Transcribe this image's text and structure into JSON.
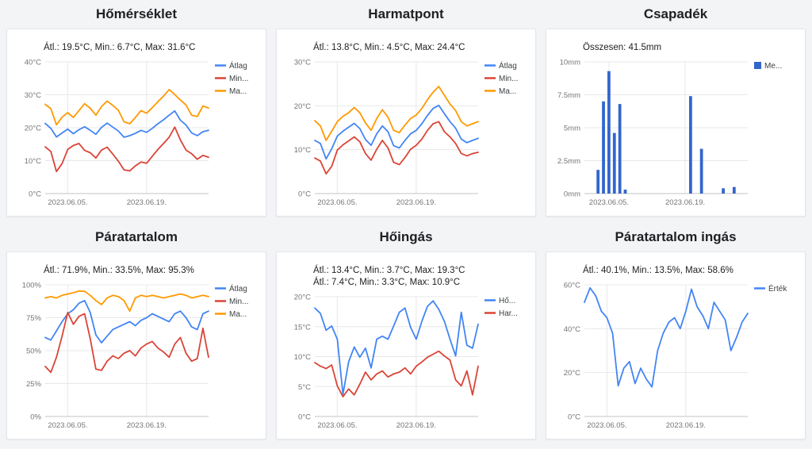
{
  "page": {
    "background": "#f3f4f6",
    "title_color": "#202124"
  },
  "colors": {
    "blue": "#4285f4",
    "red": "#db4437",
    "orange": "#ff9900",
    "bar_blue": "#3366cc"
  },
  "chart_data": [
    {
      "id": "temperature",
      "type": "line",
      "title": "Hőmérséklet",
      "subtitle_lines": [
        "Átl.: 19.5°C, Min.: 6.7°C, Max: 31.6°C"
      ],
      "ylim": [
        0,
        40
      ],
      "y_ticks": [
        {
          "value": 0,
          "label": "0°C"
        },
        {
          "value": 10,
          "label": "10°C"
        },
        {
          "value": 20,
          "label": "20°C"
        },
        {
          "value": 30,
          "label": "30°C"
        },
        {
          "value": 40,
          "label": "40°C"
        }
      ],
      "x_ticks": [
        {
          "index": 4,
          "label": "2023.06.05."
        },
        {
          "index": 18,
          "label": "2023.06.19."
        }
      ],
      "series": [
        {
          "name": "Átlag",
          "color": "#4285f4",
          "values": [
            21.3,
            19.8,
            17.2,
            18.4,
            19.6,
            18.2,
            19.4,
            20.3,
            19.2,
            18.0,
            20.1,
            21.4,
            20.2,
            19.0,
            17.1,
            17.6,
            18.3,
            19.2,
            18.6,
            19.8,
            21.2,
            22.4,
            23.8,
            25.1,
            22.3,
            20.8,
            18.4,
            17.6,
            18.8,
            19.2
          ]
        },
        {
          "name": "Min...",
          "color": "#db4437",
          "values": [
            14.2,
            12.8,
            6.7,
            9.1,
            13.4,
            14.6,
            15.2,
            13.1,
            12.4,
            10.8,
            13.2,
            14.1,
            12.0,
            9.8,
            7.2,
            6.9,
            8.4,
            9.6,
            9.2,
            11.3,
            13.4,
            15.2,
            17.1,
            20.2,
            16.3,
            13.2,
            12.1,
            10.4,
            11.6,
            11.0
          ]
        },
        {
          "name": "Ma...",
          "color": "#ff9900",
          "values": [
            27.1,
            25.8,
            20.9,
            23.2,
            24.6,
            23.1,
            25.2,
            27.3,
            25.9,
            23.8,
            26.4,
            28.1,
            26.8,
            25.3,
            21.8,
            21.2,
            23.1,
            25.2,
            24.4,
            26.1,
            27.9,
            29.6,
            31.6,
            30.1,
            28.4,
            26.9,
            23.8,
            23.4,
            26.6,
            26.0
          ]
        }
      ]
    },
    {
      "id": "dewpoint",
      "type": "line",
      "title": "Harmatpont",
      "subtitle_lines": [
        "Átl.: 13.8°C, Min.: 4.5°C, Max: 24.4°C"
      ],
      "ylim": [
        0,
        30
      ],
      "y_ticks": [
        {
          "value": 0,
          "label": "0°C"
        },
        {
          "value": 10,
          "label": "10°C"
        },
        {
          "value": 20,
          "label": "20°C"
        },
        {
          "value": 30,
          "label": "30°C"
        }
      ],
      "x_ticks": [
        {
          "index": 4,
          "label": "2023.06.05."
        },
        {
          "index": 18,
          "label": "2023.06.19."
        }
      ],
      "series": [
        {
          "name": "Átlag",
          "color": "#4285f4",
          "values": [
            12.1,
            11.4,
            7.9,
            10.2,
            13.1,
            14.2,
            15.1,
            16.0,
            14.8,
            12.3,
            11.0,
            13.6,
            15.4,
            14.1,
            10.9,
            10.4,
            12.1,
            13.6,
            14.4,
            15.9,
            17.8,
            19.4,
            20.1,
            18.2,
            16.4,
            14.9,
            12.4,
            11.6,
            12.1,
            12.6
          ]
        },
        {
          "name": "Min...",
          "color": "#db4437",
          "values": [
            8.1,
            7.4,
            4.5,
            6.2,
            9.9,
            11.1,
            12.0,
            12.9,
            11.8,
            9.1,
            7.6,
            10.1,
            12.1,
            10.4,
            7.1,
            6.6,
            8.2,
            10.1,
            11.0,
            12.4,
            14.4,
            15.9,
            16.4,
            14.1,
            12.9,
            11.4,
            9.1,
            8.6,
            9.1,
            9.4
          ]
        },
        {
          "name": "Ma...",
          "color": "#ff9900",
          "values": [
            16.6,
            15.4,
            12.1,
            14.2,
            16.4,
            17.6,
            18.4,
            19.6,
            18.4,
            16.1,
            14.4,
            17.1,
            19.1,
            17.4,
            14.4,
            13.9,
            15.6,
            17.1,
            17.9,
            19.4,
            21.4,
            23.1,
            24.4,
            22.4,
            20.4,
            18.9,
            16.4,
            15.4,
            15.9,
            16.4
          ]
        }
      ]
    },
    {
      "id": "precipitation",
      "type": "bar",
      "title": "Csapadék",
      "subtitle_lines": [
        "Összesen: 41.5mm"
      ],
      "ylim": [
        0,
        10
      ],
      "y_ticks": [
        {
          "value": 0,
          "label": "0mm"
        },
        {
          "value": 2.5,
          "label": "2.5mm"
        },
        {
          "value": 5,
          "label": "5mm"
        },
        {
          "value": 7.5,
          "label": "7.5mm"
        },
        {
          "value": 10,
          "label": "10mm"
        }
      ],
      "x_ticks": [
        {
          "index": 4,
          "label": "2023.06.05."
        },
        {
          "index": 18,
          "label": "2023.06.19."
        }
      ],
      "series": [
        {
          "name": "Me...",
          "color": "#3366cc",
          "values": [
            0,
            0,
            1.8,
            7.0,
            9.3,
            4.6,
            6.8,
            0.3,
            0,
            0,
            0,
            0,
            0,
            0,
            0,
            0,
            0,
            0,
            0,
            7.4,
            0,
            3.4,
            0,
            0,
            0,
            0.4,
            0,
            0.5,
            0,
            0
          ]
        }
      ]
    },
    {
      "id": "humidity",
      "type": "line",
      "title": "Páratartalom",
      "subtitle_lines": [
        "Átl.: 71.9%, Min.: 33.5%, Max: 95.3%"
      ],
      "ylim": [
        0,
        100
      ],
      "y_ticks": [
        {
          "value": 0,
          "label": "0%"
        },
        {
          "value": 25,
          "label": "25%"
        },
        {
          "value": 50,
          "label": "50%"
        },
        {
          "value": 75,
          "label": "75%"
        },
        {
          "value": 100,
          "label": "100%"
        }
      ],
      "x_ticks": [
        {
          "index": 4,
          "label": "2023.06.05."
        },
        {
          "index": 18,
          "label": "2023.06.19."
        }
      ],
      "series": [
        {
          "name": "Átlag",
          "color": "#4285f4",
          "values": [
            60,
            58,
            65,
            72,
            78,
            81,
            86,
            88,
            79,
            62,
            56,
            61,
            66,
            68,
            70,
            72,
            69,
            73,
            75,
            78,
            76,
            74,
            72,
            78,
            80,
            75,
            68,
            66,
            78,
            80
          ]
        },
        {
          "name": "Min...",
          "color": "#db4437",
          "values": [
            38,
            33.5,
            45,
            61,
            79,
            70,
            76,
            78,
            59,
            36,
            35,
            42,
            46,
            44,
            48,
            50,
            46,
            52,
            55,
            57,
            52,
            49,
            45,
            55,
            60,
            48,
            42,
            44,
            67,
            45
          ]
        },
        {
          "name": "Ma...",
          "color": "#ff9900",
          "values": [
            90,
            91,
            90,
            92,
            93,
            94,
            95.3,
            95,
            92,
            88,
            85,
            90,
            92,
            91,
            88,
            80,
            90,
            92,
            91,
            92,
            91,
            90,
            91,
            92,
            93,
            92,
            90,
            91,
            92,
            91
          ]
        }
      ]
    },
    {
      "id": "temperature-range",
      "type": "line",
      "title": "Hőingás",
      "subtitle_lines": [
        "Átl.: 13.4°C, Min.: 3.7°C, Max: 19.3°C",
        "Átl.: 7.4°C, Min.: 3.3°C, Max: 10.9°C"
      ],
      "ylim": [
        0,
        20
      ],
      "y_ticks": [
        {
          "value": 0,
          "label": "0°C"
        },
        {
          "value": 5,
          "label": "5°C"
        },
        {
          "value": 10,
          "label": "10°C"
        },
        {
          "value": 15,
          "label": "15°C"
        },
        {
          "value": 20,
          "label": "20°C"
        }
      ],
      "x_ticks": [
        {
          "index": 4,
          "label": "2023.06.05."
        },
        {
          "index": 18,
          "label": "2023.06.19."
        }
      ],
      "series": [
        {
          "name": "Hő...",
          "color": "#4285f4",
          "values": [
            18.1,
            17.2,
            14.4,
            15.1,
            12.9,
            3.7,
            9.1,
            11.6,
            9.9,
            11.4,
            8.1,
            12.9,
            13.4,
            12.9,
            15.1,
            17.4,
            18.1,
            14.9,
            12.9,
            15.9,
            18.4,
            19.3,
            17.9,
            15.9,
            12.9,
            10.1,
            17.4,
            11.9,
            11.4,
            15.4
          ]
        },
        {
          "name": "Har...",
          "color": "#db4437",
          "values": [
            9.0,
            8.4,
            8.0,
            8.6,
            5.1,
            3.3,
            4.6,
            3.6,
            5.4,
            7.4,
            6.1,
            7.1,
            7.6,
            6.6,
            7.1,
            7.4,
            8.1,
            7.1,
            8.4,
            9.1,
            9.9,
            10.4,
            10.9,
            10.1,
            9.4,
            6.1,
            5.1,
            7.6,
            3.6,
            8.4
          ]
        }
      ]
    },
    {
      "id": "humidity-range",
      "type": "line",
      "title": "Páratartalom ingás",
      "subtitle_lines": [
        "Átl.: 40.1%, Min.: 13.5%, Max: 58.6%"
      ],
      "ylim": [
        0,
        60
      ],
      "y_ticks": [
        {
          "value": 0,
          "label": "0°C"
        },
        {
          "value": 20,
          "label": "20°C"
        },
        {
          "value": 40,
          "label": "40°C"
        },
        {
          "value": 60,
          "label": "60°C"
        }
      ],
      "x_ticks": [
        {
          "index": 4,
          "label": "2023.06.05."
        },
        {
          "index": 18,
          "label": "2023.06.19."
        }
      ],
      "series": [
        {
          "name": "Érték",
          "color": "#4285f4",
          "values": [
            52,
            58.6,
            55,
            48,
            45,
            38,
            14,
            22,
            25,
            15,
            22,
            17,
            13.5,
            30,
            38,
            43,
            45,
            40,
            48,
            58,
            50,
            46,
            40,
            52,
            48,
            44,
            30,
            36,
            43,
            47
          ]
        }
      ]
    }
  ]
}
